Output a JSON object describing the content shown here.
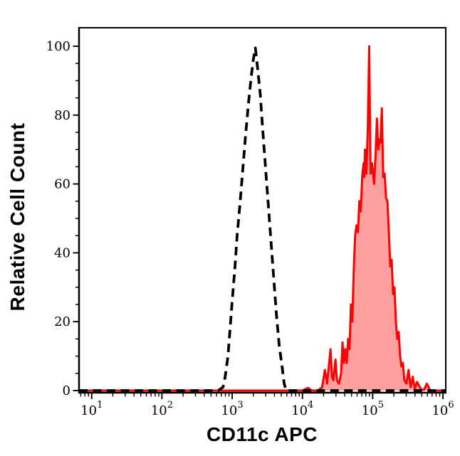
{
  "chart_data": {
    "type": "area",
    "subtype": "flow-cytometry-overlay-histogram",
    "title": "",
    "xlabel": "CD11c APC",
    "ylabel": "Relative Cell Count",
    "x_scale": "log10",
    "x_range_log10": [
      0.82,
      6.04
    ],
    "ylim": [
      0,
      105
    ],
    "grid": false,
    "legend": null,
    "y_major_ticks": [
      0,
      20,
      40,
      60,
      80,
      100
    ],
    "y_minor_tick_step": 5,
    "x_major_ticks": [
      {
        "base": "10",
        "exp": "1",
        "log10": 1
      },
      {
        "base": "10",
        "exp": "2",
        "log10": 2
      },
      {
        "base": "10",
        "exp": "3",
        "log10": 3
      },
      {
        "base": "10",
        "exp": "4",
        "log10": 4
      },
      {
        "base": "10",
        "exp": "5",
        "log10": 5
      },
      {
        "base": "10",
        "exp": "6",
        "log10": 6
      }
    ],
    "x_minor_tick_multipliers": [
      2,
      3,
      4,
      5,
      6,
      7,
      8,
      9
    ],
    "axis_color": "#000000",
    "series": [
      {
        "id": "red-filled-histogram",
        "name": "red-filled-histogram",
        "line_style": "solid",
        "color": "#ff0000",
        "fill": "#ffa0a0",
        "peak_log10x": 4.95,
        "peak_value": 100,
        "points_log10x_y": [
          [
            0.82,
            0
          ],
          [
            1.5,
            0
          ],
          [
            2.5,
            0
          ],
          [
            3.5,
            0
          ],
          [
            4.0,
            0
          ],
          [
            4.08,
            0.8
          ],
          [
            4.13,
            0
          ],
          [
            4.22,
            0
          ],
          [
            4.28,
            1
          ],
          [
            4.32,
            6
          ],
          [
            4.35,
            2
          ],
          [
            4.4,
            12
          ],
          [
            4.42,
            4
          ],
          [
            4.44,
            3
          ],
          [
            4.47,
            9
          ],
          [
            4.49,
            3
          ],
          [
            4.52,
            2
          ],
          [
            4.55,
            5
          ],
          [
            4.57,
            14
          ],
          [
            4.59,
            8
          ],
          [
            4.61,
            12
          ],
          [
            4.63,
            8
          ],
          [
            4.65,
            15
          ],
          [
            4.67,
            12
          ],
          [
            4.69,
            25
          ],
          [
            4.71,
            20
          ],
          [
            4.73,
            35
          ],
          [
            4.75,
            45
          ],
          [
            4.77,
            48
          ],
          [
            4.79,
            46
          ],
          [
            4.81,
            55
          ],
          [
            4.83,
            52
          ],
          [
            4.85,
            62
          ],
          [
            4.87,
            66
          ],
          [
            4.88,
            62
          ],
          [
            4.89,
            70
          ],
          [
            4.91,
            63
          ],
          [
            4.93,
            76
          ],
          [
            4.95,
            100
          ],
          [
            4.96,
            80
          ],
          [
            4.97,
            63
          ],
          [
            4.99,
            66
          ],
          [
            5.02,
            60
          ],
          [
            5.04,
            68
          ],
          [
            5.06,
            79
          ],
          [
            5.08,
            70
          ],
          [
            5.1,
            73
          ],
          [
            5.11,
            72
          ],
          [
            5.13,
            82
          ],
          [
            5.15,
            62
          ],
          [
            5.17,
            63
          ],
          [
            5.19,
            56
          ],
          [
            5.21,
            55
          ],
          [
            5.23,
            46
          ],
          [
            5.25,
            36
          ],
          [
            5.27,
            38
          ],
          [
            5.29,
            28
          ],
          [
            5.31,
            30
          ],
          [
            5.33,
            20
          ],
          [
            5.35,
            15
          ],
          [
            5.37,
            17
          ],
          [
            5.39,
            10
          ],
          [
            5.41,
            7
          ],
          [
            5.43,
            8
          ],
          [
            5.45,
            3
          ],
          [
            5.48,
            2
          ],
          [
            5.51,
            6
          ],
          [
            5.54,
            1
          ],
          [
            5.57,
            4
          ],
          [
            5.6,
            0.5
          ],
          [
            5.63,
            2.5
          ],
          [
            5.69,
            0.3
          ],
          [
            5.73,
            0.2
          ],
          [
            5.77,
            2
          ],
          [
            5.82,
            0
          ],
          [
            5.95,
            0
          ],
          [
            6.04,
            0
          ]
        ]
      },
      {
        "id": "black-dashed-histogram",
        "name": "black-dashed-histogram",
        "line_style": "dashed",
        "color": "#000000",
        "fill": "none",
        "peak_log10x": 3.33,
        "peak_value": 99.5,
        "points_log10x_y": [
          [
            0.82,
            0
          ],
          [
            1.5,
            0
          ],
          [
            2.0,
            0
          ],
          [
            2.4,
            0
          ],
          [
            2.8,
            0
          ],
          [
            2.87,
            1
          ],
          [
            2.9,
            4
          ],
          [
            2.94,
            10
          ],
          [
            2.97,
            18
          ],
          [
            3.0,
            26
          ],
          [
            3.04,
            36
          ],
          [
            3.07,
            45
          ],
          [
            3.11,
            54
          ],
          [
            3.15,
            64
          ],
          [
            3.19,
            74
          ],
          [
            3.23,
            83
          ],
          [
            3.27,
            91
          ],
          [
            3.3,
            96
          ],
          [
            3.33,
            99.5
          ],
          [
            3.36,
            94
          ],
          [
            3.4,
            86
          ],
          [
            3.43,
            77
          ],
          [
            3.47,
            66
          ],
          [
            3.51,
            55
          ],
          [
            3.55,
            44
          ],
          [
            3.59,
            33
          ],
          [
            3.63,
            22
          ],
          [
            3.67,
            13
          ],
          [
            3.71,
            7
          ],
          [
            3.74,
            2
          ],
          [
            3.77,
            0
          ],
          [
            4.2,
            0
          ],
          [
            4.8,
            0
          ],
          [
            5.4,
            0
          ],
          [
            6.04,
            0
          ]
        ]
      }
    ]
  }
}
